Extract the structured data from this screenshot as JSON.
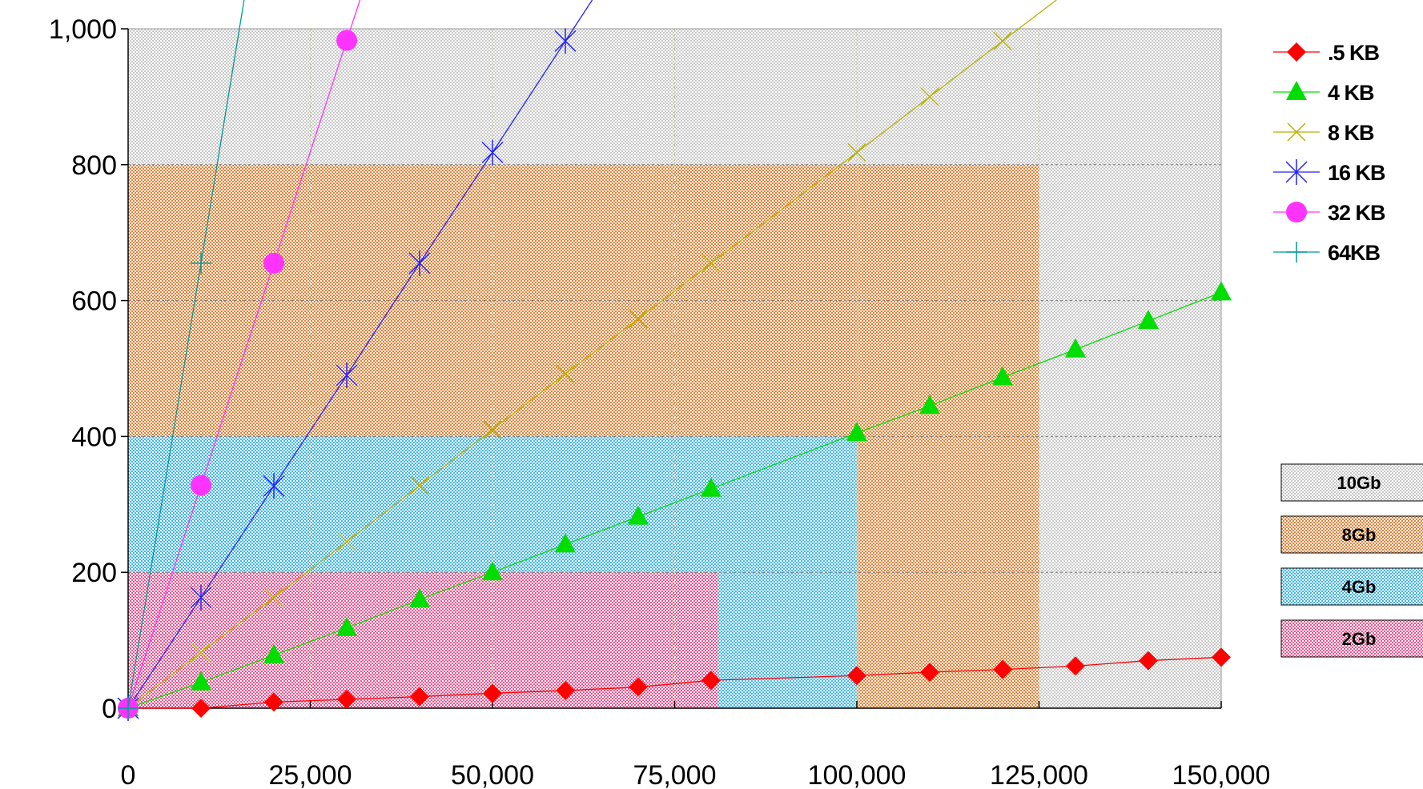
{
  "chart_data": {
    "type": "line",
    "title": "",
    "xlabel": "",
    "ylabel": "",
    "xlim": [
      0,
      150000
    ],
    "ylim": [
      0,
      1000
    ],
    "x_ticks": [
      0,
      25000,
      50000,
      75000,
      100000,
      125000,
      150000
    ],
    "x_tick_labels": [
      "0",
      "25,000",
      "50,000",
      "75,000",
      "100,000",
      "125,000",
      "150,000"
    ],
    "y_ticks": [
      0,
      200,
      400,
      600,
      800,
      1000
    ],
    "y_tick_labels": [
      "0",
      "200",
      "400",
      "600",
      "800",
      "1,000"
    ],
    "grid": true,
    "legend_position": "right",
    "series": [
      {
        "name": ".5 KB",
        "color": "#ff0000",
        "marker": "diamond",
        "x": [
          0,
          10000,
          20000,
          30000,
          40000,
          50000,
          60000,
          70000,
          80000,
          100000,
          110000,
          120000,
          130000,
          140000,
          150000
        ],
        "y": [
          0,
          0,
          9,
          13,
          17,
          22,
          26,
          31,
          41,
          48,
          53,
          57,
          62,
          70,
          75
        ]
      },
      {
        "name": "4 KB",
        "color": "#00dd00",
        "marker": "triangle",
        "x": [
          0,
          10000,
          20000,
          30000,
          40000,
          50000,
          60000,
          70000,
          80000,
          100000,
          110000,
          120000,
          130000,
          140000,
          150000
        ],
        "y": [
          0,
          38,
          78,
          118,
          160,
          200,
          241,
          282,
          323,
          405,
          445,
          487,
          528,
          570,
          612
        ]
      },
      {
        "name": "8 KB",
        "color": "#b8b000",
        "marker": "x",
        "x": [
          0,
          10000,
          20000,
          30000,
          40000,
          50000,
          60000,
          70000,
          80000,
          100000,
          110000,
          120000
        ],
        "y": [
          0,
          82,
          163,
          245,
          328,
          410,
          492,
          573,
          655,
          818,
          900,
          982
        ]
      },
      {
        "name": "16 KB",
        "color": "#2222ff",
        "marker": "star",
        "x": [
          0,
          10000,
          20000,
          30000,
          40000,
          50000,
          60000
        ],
        "y": [
          0,
          163,
          327,
          490,
          655,
          818,
          982
        ]
      },
      {
        "name": "32 KB",
        "color": "#ff33ff",
        "marker": "circle",
        "x": [
          0,
          10000,
          20000,
          30000
        ],
        "y": [
          0,
          328,
          655,
          983
        ]
      },
      {
        "name": "64KB",
        "color": "#009999",
        "marker": "plus",
        "x": [
          0,
          10000
        ],
        "y": [
          0,
          655
        ]
      }
    ],
    "regions": [
      {
        "name": "10Gb",
        "color": "#c8c8c8",
        "x_max": 150000,
        "y_max": 1000
      },
      {
        "name": "8Gb",
        "color": "#e87d30",
        "x_max": 125000,
        "y_max": 800
      },
      {
        "name": "4Gb",
        "color": "#3cb4ee",
        "x_max": 100000,
        "y_max": 400
      },
      {
        "name": "2Gb",
        "color": "#f0508c",
        "x_max": 81000,
        "y_max": 200
      }
    ]
  }
}
